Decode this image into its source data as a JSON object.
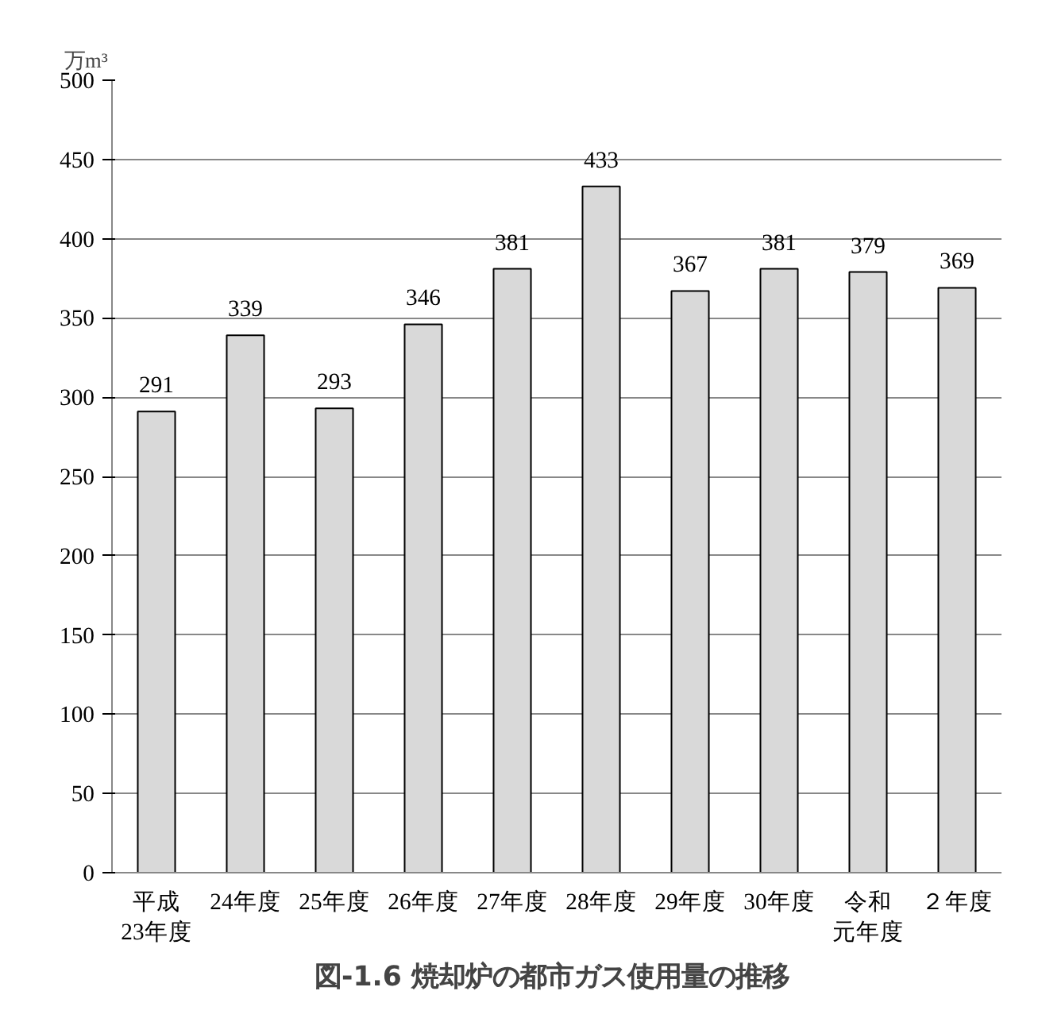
{
  "chart_data": {
    "type": "bar",
    "title": "図-1.6  焼却炉の都市ガス使用量の推移",
    "ylabel": "万m³",
    "categories": [
      "平成23年度",
      "24年度",
      "25年度",
      "26年度",
      "27年度",
      "28年度",
      "29年度",
      "30年度",
      "令和元年度",
      "２年度"
    ],
    "values": [
      291,
      339,
      293,
      346,
      381,
      433,
      367,
      381,
      379,
      369
    ],
    "color": "#d9d9d9",
    "ylim": [
      0,
      500
    ],
    "yticks": [
      0,
      50,
      100,
      150,
      200,
      250,
      300,
      350,
      400,
      450,
      500
    ],
    "grid": "y",
    "data_labels": true
  }
}
